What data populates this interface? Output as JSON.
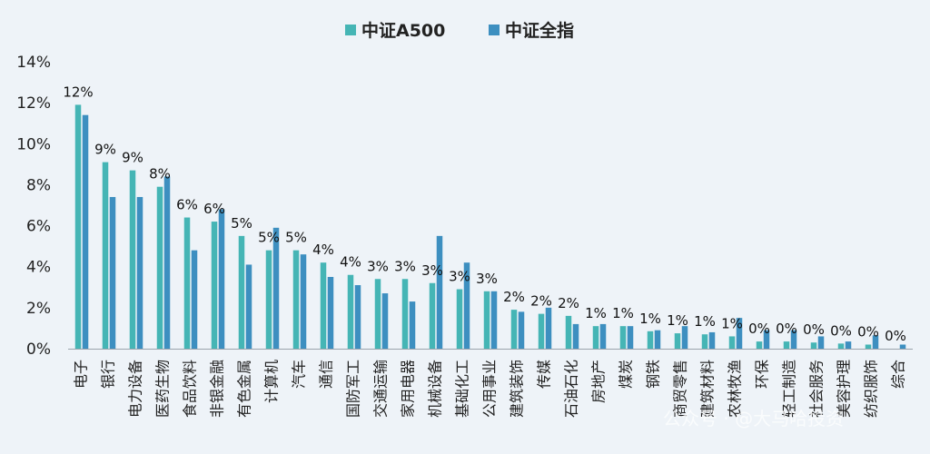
{
  "chart_data": {
    "type": "bar",
    "categories": [
      "电子",
      "银行",
      "电力设备",
      "医药生物",
      "食品饮料",
      "非银金融",
      "有色金属",
      "计算机",
      "汽车",
      "通信",
      "国防军工",
      "交通运输",
      "家用电器",
      "机械设备",
      "基础化工",
      "公用事业",
      "建筑装饰",
      "传媒",
      "石油石化",
      "房地产",
      "煤炭",
      "钢铁",
      "商贸零售",
      "建筑材料",
      "农林牧渔",
      "环保",
      "轻工制造",
      "社会服务",
      "美容护理",
      "纺织服饰",
      "综合"
    ],
    "series": [
      {
        "name": "中证A500",
        "color": "#45b5b5",
        "values": [
          11.9,
          9.1,
          8.7,
          7.9,
          6.4,
          6.2,
          5.5,
          4.8,
          4.8,
          4.2,
          3.6,
          3.4,
          3.4,
          3.2,
          2.9,
          2.8,
          1.9,
          1.7,
          1.6,
          1.1,
          1.1,
          0.85,
          0.75,
          0.7,
          0.6,
          0.35,
          0.35,
          0.3,
          0.25,
          0.2,
          0.0
        ],
        "labels": [
          "12%",
          "9%",
          "9%",
          "8%",
          "6%",
          "6%",
          "5%",
          "5%",
          "5%",
          "4%",
          "4%",
          "3%",
          "3%",
          "3%",
          "3%",
          "3%",
          "2%",
          "2%",
          "2%",
          "1%",
          "1%",
          "1%",
          "1%",
          "1%",
          "1%",
          "0%",
          "0%",
          "0%",
          "0%",
          "0%",
          "0%"
        ]
      },
      {
        "name": "中证全指",
        "color": "#3d8fc0",
        "values": [
          11.4,
          7.4,
          7.4,
          8.4,
          4.8,
          6.8,
          4.1,
          5.9,
          4.6,
          3.5,
          3.1,
          2.7,
          2.3,
          5.5,
          4.2,
          2.8,
          1.8,
          2.0,
          1.2,
          1.2,
          1.1,
          0.9,
          1.1,
          0.8,
          1.5,
          0.9,
          0.9,
          0.6,
          0.35,
          0.65,
          0.2
        ]
      }
    ],
    "y_ticks": [
      "0%",
      "2%",
      "4%",
      "6%",
      "8%",
      "10%",
      "12%",
      "14%"
    ],
    "ylim": [
      0,
      14
    ],
    "legend_position": "top-center",
    "grid": false
  },
  "watermark": "公众号 · @大马哈投资"
}
